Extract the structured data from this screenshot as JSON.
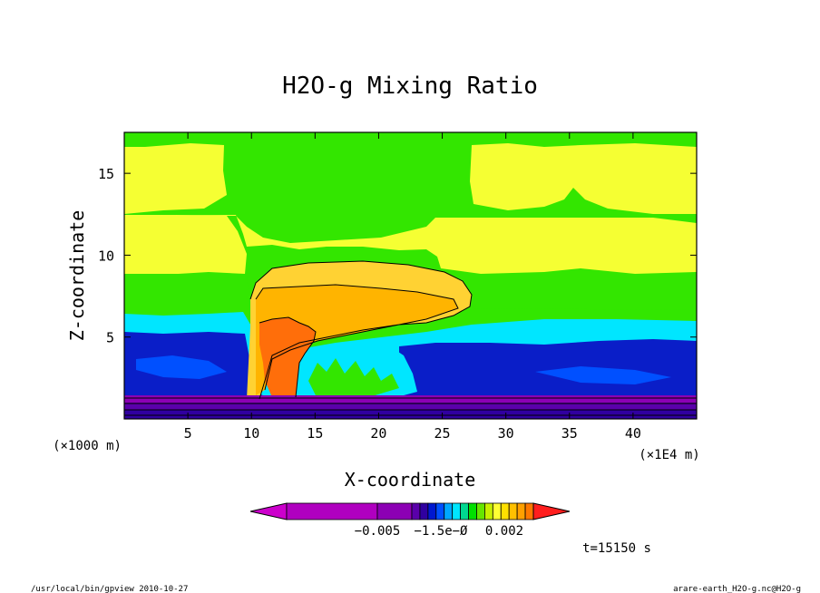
{
  "chart_data": {
    "type": "heatmap",
    "title": "H2O-g Mixing Ratio",
    "xlabel": "X-coordinate",
    "ylabel": "Z-coordinate",
    "x_unit": "(×1E4 m)",
    "y_unit": "(×1000 m)",
    "xlim": [
      0,
      45
    ],
    "ylim": [
      0,
      17.5
    ],
    "xticks": [
      5,
      10,
      15,
      20,
      25,
      30,
      35,
      40
    ],
    "yticks": [
      5,
      10,
      15
    ],
    "colorbar": {
      "tick_labels": [
        "−0.005",
        "−1.5e−Ø",
        "0.002"
      ],
      "colors": [
        "#cc00cc",
        "#b000c0",
        "#8c00b4",
        "#5a00aa",
        "#3000a0",
        "#0018d0",
        "#0050ff",
        "#00a8ff",
        "#00e6ff",
        "#00d890",
        "#00e000",
        "#66e600",
        "#c8f000",
        "#ffff33",
        "#ffe000",
        "#ffc000",
        "#ffa000",
        "#ff7800",
        "#ff1e1e"
      ]
    },
    "time_label": "t=15150 s"
  },
  "footer": {
    "left": "/usr/local/bin/gpview  2010-10-27",
    "right": "arare-earth_H2O-g.nc@H2O-g"
  },
  "colors": {
    "purple": "#8c00b4",
    "dark_blue": "#0a1ec8",
    "cyan": "#00e6ff",
    "green": "#33e600",
    "yellow": "#f5ff33",
    "light_orange": "#ffd233",
    "orange": "#ffb400",
    "red_orange": "#ff6e0a"
  }
}
